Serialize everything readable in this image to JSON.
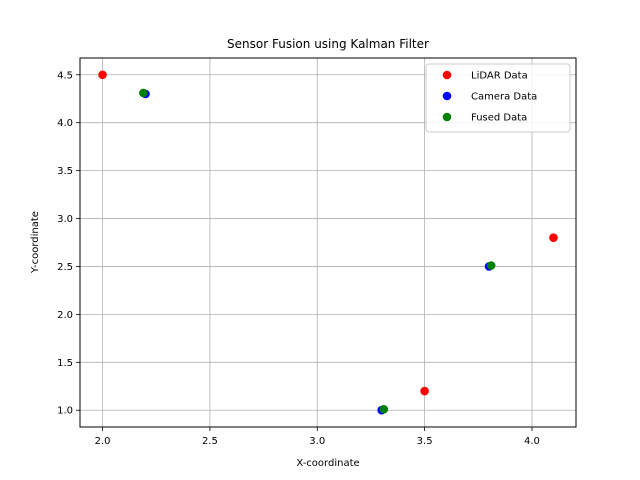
{
  "chart_data": {
    "type": "scatter",
    "title": "Sensor Fusion using Kalman Filter",
    "xlabel": "X-coordinate",
    "ylabel": "Y-coordinate",
    "xlim": [
      1.895,
      4.205
    ],
    "ylim": [
      0.825,
      4.675
    ],
    "xticks": [
      2.0,
      2.5,
      3.0,
      3.5,
      4.0
    ],
    "yticks": [
      1.0,
      1.5,
      2.0,
      2.5,
      3.0,
      3.5,
      4.0,
      4.5
    ],
    "grid": true,
    "legend_position": "top-right",
    "series": [
      {
        "name": "LiDAR Data",
        "color": "#ff0000",
        "points": [
          [
            2.0,
            4.5
          ],
          [
            3.5,
            1.2
          ],
          [
            4.1,
            2.8
          ]
        ]
      },
      {
        "name": "Camera Data",
        "color": "#0000ff",
        "points": [
          [
            2.2,
            4.3
          ],
          [
            3.3,
            1.0
          ],
          [
            3.8,
            2.5
          ]
        ]
      },
      {
        "name": "Fused Data",
        "color": "#008000",
        "points": [
          [
            2.19,
            4.31
          ],
          [
            3.31,
            1.01
          ],
          [
            3.81,
            2.51
          ]
        ]
      }
    ]
  }
}
